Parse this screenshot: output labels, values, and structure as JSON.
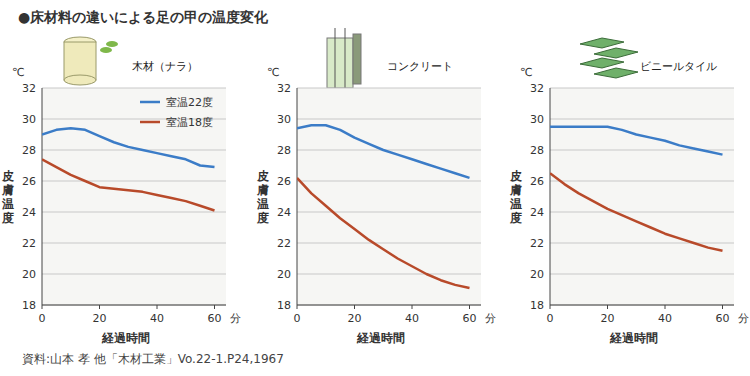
{
  "title": "●床材料の違いによる足の甲の温度変化",
  "source": "資料:山本 孝 他「木材工業」Vo.22-1.P24,1967",
  "chart_data": [
    {
      "type": "line",
      "title": "木材（ナラ）",
      "xlabel": "経過時間",
      "x_unit": "分",
      "ylabel": "皮膚温度",
      "y_unit": "℃",
      "x": [
        0,
        5,
        10,
        15,
        20,
        25,
        30,
        35,
        40,
        45,
        50,
        55,
        60
      ],
      "xlim": [
        0,
        64
      ],
      "xticks": [
        0,
        20,
        40,
        60
      ],
      "ylim": [
        18,
        32
      ],
      "yticks": [
        18,
        20,
        22,
        24,
        26,
        28,
        30,
        32
      ],
      "grid": true,
      "legend": "upper right",
      "series": [
        {
          "name": "室温22度",
          "color": "#3b7cc7",
          "values": [
            29.0,
            29.3,
            29.4,
            29.3,
            28.9,
            28.5,
            28.2,
            28.0,
            27.8,
            27.6,
            27.4,
            27.0,
            26.9
          ]
        },
        {
          "name": "室温18度",
          "color": "#b84a2a",
          "values": [
            27.4,
            26.9,
            26.4,
            26.0,
            25.6,
            25.5,
            25.4,
            25.3,
            25.1,
            24.9,
            24.7,
            24.4,
            24.1
          ]
        }
      ]
    },
    {
      "type": "line",
      "title": "コンクリート",
      "xlabel": "経過時間",
      "x_unit": "分",
      "ylabel": "皮膚温度",
      "y_unit": "℃",
      "x": [
        0,
        5,
        10,
        15,
        20,
        25,
        30,
        35,
        40,
        45,
        50,
        55,
        60
      ],
      "xlim": [
        0,
        64
      ],
      "xticks": [
        0,
        20,
        40,
        60
      ],
      "ylim": [
        18,
        32
      ],
      "yticks": [
        18,
        20,
        22,
        24,
        26,
        28,
        30,
        32
      ],
      "grid": true,
      "series": [
        {
          "color": "#3b7cc7",
          "values": [
            29.4,
            29.6,
            29.6,
            29.3,
            28.8,
            28.4,
            28.0,
            27.7,
            27.4,
            27.1,
            26.8,
            26.5,
            26.2
          ]
        },
        {
          "color": "#b84a2a",
          "values": [
            26.2,
            25.2,
            24.4,
            23.6,
            22.9,
            22.2,
            21.6,
            21.0,
            20.5,
            20.0,
            19.6,
            19.3,
            19.1
          ]
        }
      ]
    },
    {
      "type": "line",
      "title": "ビニールタイル",
      "xlabel": "経過時間",
      "x_unit": "分",
      "ylabel": "皮膚温度",
      "y_unit": "℃",
      "x": [
        0,
        5,
        10,
        15,
        20,
        25,
        30,
        35,
        40,
        45,
        50,
        55,
        60
      ],
      "xlim": [
        0,
        64
      ],
      "xticks": [
        0,
        20,
        40,
        60
      ],
      "ylim": [
        18,
        32
      ],
      "yticks": [
        18,
        20,
        22,
        24,
        26,
        28,
        30,
        32
      ],
      "grid": true,
      "series": [
        {
          "color": "#3b7cc7",
          "values": [
            29.5,
            29.5,
            29.5,
            29.5,
            29.5,
            29.3,
            29.0,
            28.8,
            28.6,
            28.3,
            28.1,
            27.9,
            27.7
          ]
        },
        {
          "color": "#b84a2a",
          "values": [
            26.5,
            25.8,
            25.2,
            24.7,
            24.2,
            23.8,
            23.4,
            23.0,
            22.6,
            22.3,
            22.0,
            21.7,
            21.5
          ]
        }
      ]
    }
  ]
}
